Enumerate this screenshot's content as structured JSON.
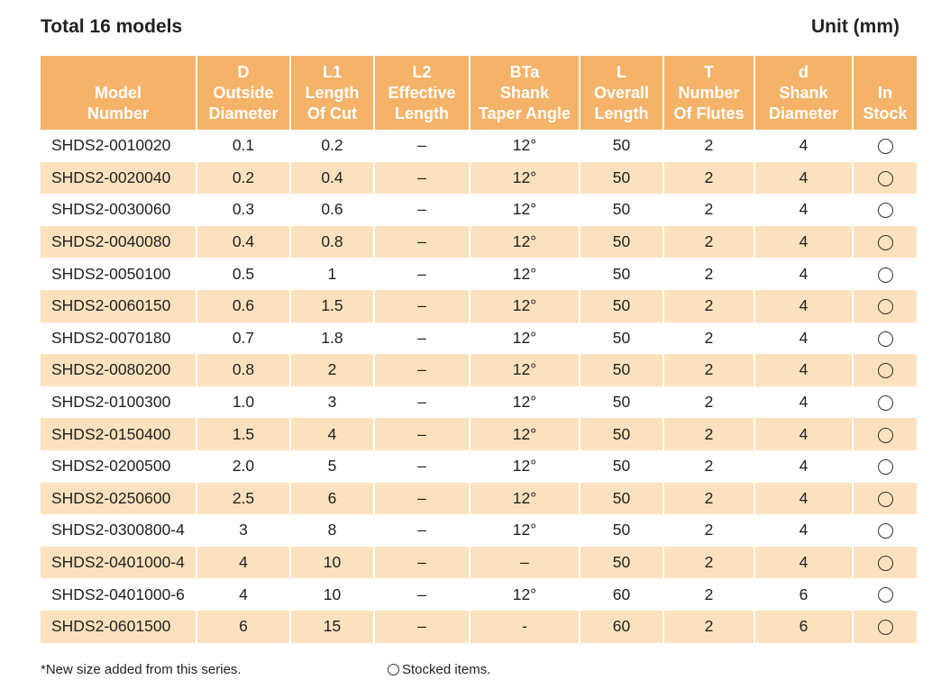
{
  "header": {
    "title": "Total 16 models",
    "unit": "Unit (mm)"
  },
  "table": {
    "columns": [
      {
        "key": "model",
        "lines": [
          "",
          "Model",
          "Number"
        ]
      },
      {
        "key": "D",
        "lines": [
          "D",
          "Outside",
          "Diameter"
        ]
      },
      {
        "key": "L1",
        "lines": [
          "L1",
          "Length",
          "Of Cut"
        ]
      },
      {
        "key": "L2",
        "lines": [
          "L2",
          "Effective",
          "Length"
        ]
      },
      {
        "key": "BTa",
        "lines": [
          "BTa",
          "Shank",
          "Taper Angle"
        ]
      },
      {
        "key": "L",
        "lines": [
          "L",
          "Overall",
          "Length"
        ]
      },
      {
        "key": "T",
        "lines": [
          "T",
          "Number",
          "Of Flutes"
        ]
      },
      {
        "key": "d",
        "lines": [
          "d",
          "Shank",
          "Diameter"
        ]
      },
      {
        "key": "stock",
        "lines": [
          "",
          "In",
          "Stock"
        ]
      }
    ],
    "rows": [
      {
        "model": "SHDS2-0010020",
        "D": "0.1",
        "L1": "0.2",
        "L2": "–",
        "BTa": "12°",
        "L": "50",
        "T": "2",
        "d": "4",
        "stock": "in-stock-mark"
      },
      {
        "model": "SHDS2-0020040",
        "D": "0.2",
        "L1": "0.4",
        "L2": "–",
        "BTa": "12°",
        "L": "50",
        "T": "2",
        "d": "4",
        "stock": "in-stock-mark"
      },
      {
        "model": "SHDS2-0030060",
        "D": "0.3",
        "L1": "0.6",
        "L2": "–",
        "BTa": "12°",
        "L": "50",
        "T": "2",
        "d": "4",
        "stock": "in-stock-mark"
      },
      {
        "model": "SHDS2-0040080",
        "D": "0.4",
        "L1": "0.8",
        "L2": "–",
        "BTa": "12°",
        "L": "50",
        "T": "2",
        "d": "4",
        "stock": "in-stock-mark"
      },
      {
        "model": "SHDS2-0050100",
        "D": "0.5",
        "L1": "1",
        "L2": "–",
        "BTa": "12°",
        "L": "50",
        "T": "2",
        "d": "4",
        "stock": "in-stock-mark"
      },
      {
        "model": "SHDS2-0060150",
        "D": "0.6",
        "L1": "1.5",
        "L2": "–",
        "BTa": "12°",
        "L": "50",
        "T": "2",
        "d": "4",
        "stock": "in-stock-mark"
      },
      {
        "model": "SHDS2-0070180",
        "D": "0.7",
        "L1": "1.8",
        "L2": "–",
        "BTa": "12°",
        "L": "50",
        "T": "2",
        "d": "4",
        "stock": "in-stock-mark"
      },
      {
        "model": "SHDS2-0080200",
        "D": "0.8",
        "L1": "2",
        "L2": "–",
        "BTa": "12°",
        "L": "50",
        "T": "2",
        "d": "4",
        "stock": "in-stock-mark"
      },
      {
        "model": "SHDS2-0100300",
        "D": "1.0",
        "L1": "3",
        "L2": "–",
        "BTa": "12°",
        "L": "50",
        "T": "2",
        "d": "4",
        "stock": "in-stock-mark"
      },
      {
        "model": "SHDS2-0150400",
        "D": "1.5",
        "L1": "4",
        "L2": "–",
        "BTa": "12°",
        "L": "50",
        "T": "2",
        "d": "4",
        "stock": "in-stock-mark"
      },
      {
        "model": "SHDS2-0200500",
        "D": "2.0",
        "L1": "5",
        "L2": "–",
        "BTa": "12°",
        "L": "50",
        "T": "2",
        "d": "4",
        "stock": "in-stock-mark"
      },
      {
        "model": "SHDS2-0250600",
        "D": "2.5",
        "L1": "6",
        "L2": "–",
        "BTa": "12°",
        "L": "50",
        "T": "2",
        "d": "4",
        "stock": "in-stock-mark"
      },
      {
        "model": "SHDS2-0300800-4",
        "D": "3",
        "L1": "8",
        "L2": "–",
        "BTa": "12°",
        "L": "50",
        "T": "2",
        "d": "4",
        "stock": "in-stock-mark"
      },
      {
        "model": "SHDS2-0401000-4",
        "D": "4",
        "L1": "10",
        "L2": "–",
        "BTa": "–",
        "L": "50",
        "T": "2",
        "d": "4",
        "stock": "in-stock-mark"
      },
      {
        "model": "SHDS2-0401000-6",
        "D": "4",
        "L1": "10",
        "L2": "–",
        "BTa": "12°",
        "L": "60",
        "T": "2",
        "d": "6",
        "stock": "in-stock-mark"
      },
      {
        "model": "SHDS2-0601500",
        "D": "6",
        "L1": "15",
        "L2": "–",
        "BTa": "-",
        "L": "60",
        "T": "2",
        "d": "6",
        "stock": "in-stock-mark"
      }
    ]
  },
  "footer": {
    "note": "*New size added from this series.",
    "legend": "Stocked items."
  },
  "colors": {
    "header_bg": "#f5b36a",
    "alt_row_bg": "#fbe1bd"
  }
}
